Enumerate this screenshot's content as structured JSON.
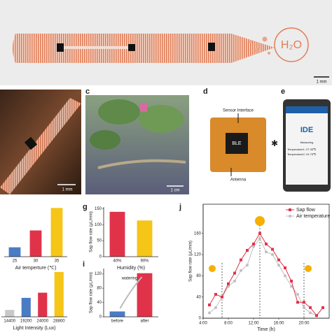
{
  "panel_labels": [
    "c",
    "d",
    "e",
    "g",
    "i",
    "j"
  ],
  "scale_bars": [
    "1 mm",
    "1 mm",
    "1 cm"
  ],
  "top": {
    "molecule": "H₂O"
  },
  "sensor": {
    "interface": "Sensor Interface",
    "chip": "BLE",
    "antenna": "Antenna"
  },
  "phone": {
    "logo": "IDE",
    "status": "Measuring",
    "temp1": "Temperature1: 27.35℃",
    "temp2": "Temperature2: 24.75℃"
  },
  "chart_data": [
    {
      "type": "bar",
      "xlabel": "Air temperture (℃)",
      "categories": [
        "25",
        "30",
        "35"
      ],
      "values": [
        25,
        70,
        130
      ],
      "colors": [
        "#4a7cc4",
        "#e0334a",
        "#f5c518"
      ],
      "ylim": [
        0,
        140
      ]
    },
    {
      "type": "bar",
      "xlabel": "Light Intensity (Lux)",
      "categories": [
        "14400",
        "19200",
        "24000",
        "28800"
      ],
      "values": [
        20,
        55,
        70,
        130
      ],
      "colors": [
        "#c8c8c8",
        "#4a7cc4",
        "#e0334a",
        "#f5c518"
      ],
      "ylim": [
        0,
        140
      ]
    },
    {
      "type": "bar",
      "xlabel": "Humidity (%)",
      "ylabel": "Sap flow rate (μL/min)",
      "categories": [
        "40%",
        "90%"
      ],
      "values": [
        140,
        113
      ],
      "colors": [
        "#e0334a",
        "#f5c518"
      ],
      "ylim": [
        0,
        155
      ],
      "yticks": [
        0,
        50,
        100,
        150
      ]
    },
    {
      "type": "bar",
      "ylabel": "Sap flow rate (μL/min)",
      "annotation": "watering",
      "categories": [
        "before",
        "after"
      ],
      "values": [
        15,
        122
      ],
      "colors": [
        "#4a7cc4",
        "#e0334a"
      ],
      "ylim": [
        0,
        135
      ],
      "yticks": [
        0,
        40,
        80,
        120
      ]
    },
    {
      "type": "line",
      "xlabel": "Time (h)",
      "ylabel": "Sap flow rate (μL/min)",
      "x": [
        5,
        6,
        7,
        8,
        9,
        10,
        11,
        12,
        13,
        14,
        15,
        16,
        17,
        18,
        19,
        20,
        21,
        22,
        23
      ],
      "series": [
        {
          "name": "Sap flow",
          "color": "#e0334a",
          "values": [
            25,
            45,
            40,
            65,
            85,
            110,
            128,
            140,
            160,
            140,
            130,
            110,
            95,
            70,
            30,
            30,
            20,
            5,
            20
          ]
        },
        {
          "name": "Air temperature",
          "color": "#c0c0c0",
          "values": [
            10,
            20,
            40,
            60,
            70,
            90,
            100,
            135,
            150,
            125,
            120,
            100,
            80,
            60,
            45,
            20,
            10,
            5,
            20
          ]
        }
      ],
      "xlim": [
        4,
        24
      ],
      "ylim": [
        0,
        215
      ],
      "xticks": [
        {
          "value": 4,
          "label": "4:00"
        },
        {
          "value": 8,
          "label": "8:00"
        },
        {
          "value": 12,
          "label": "12:00"
        },
        {
          "value": 16,
          "label": "16:00"
        },
        {
          "value": 20,
          "label": "20:00"
        }
      ],
      "yticks": [
        0,
        40,
        80,
        120,
        160
      ],
      "legend": "upper right"
    }
  ]
}
